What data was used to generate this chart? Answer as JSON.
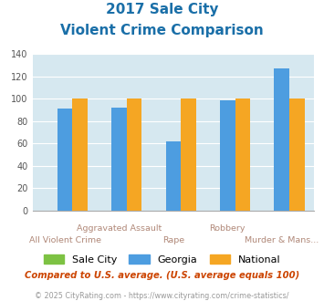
{
  "title_line1": "2017 Sale City",
  "title_line2": "Violent Crime Comparison",
  "categories": [
    "All Violent Crime",
    "Aggravated Assault",
    "Rape",
    "Robbery",
    "Murder & Mans..."
  ],
  "sale_city": [
    0,
    0,
    0,
    0,
    0
  ],
  "georgia": [
    91,
    92,
    62,
    99,
    127
  ],
  "national": [
    100,
    100,
    100,
    100,
    100
  ],
  "bar_color_sale_city": "#7dc243",
  "bar_color_georgia": "#4d9de0",
  "bar_color_national": "#f5a623",
  "ylim": [
    0,
    140
  ],
  "yticks": [
    0,
    20,
    40,
    60,
    80,
    100,
    120,
    140
  ],
  "background_color": "#d6e8f0",
  "title_color": "#1a6fa8",
  "xlabel_color": "#b08878",
  "footnote1": "Compared to U.S. average. (U.S. average equals 100)",
  "footnote2": "© 2025 CityRating.com - https://www.cityrating.com/crime-statistics/",
  "footnote1_color": "#cc4400",
  "footnote2_color": "#999999",
  "legend_labels": [
    "Sale City",
    "Georgia",
    "National"
  ],
  "bar_width": 0.28
}
